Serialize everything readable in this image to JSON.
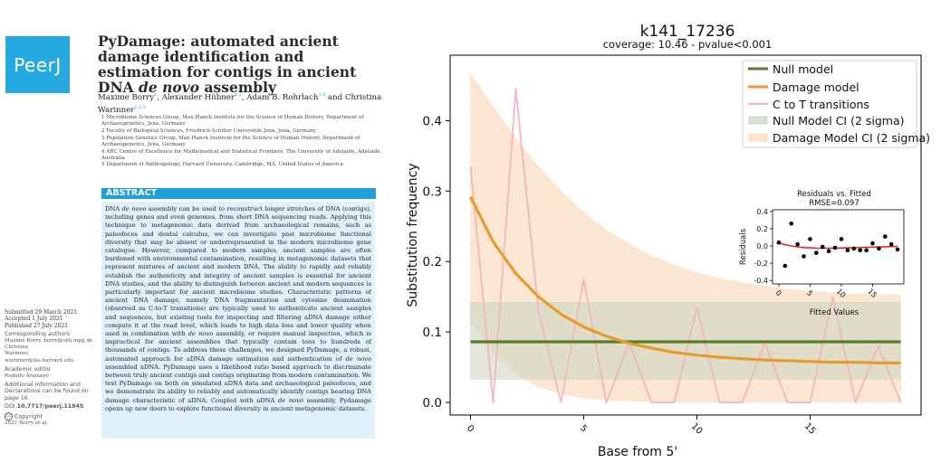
{
  "paper": {
    "journal_logo": "PeerJ",
    "title_prefix": "PyDamage: automated ancient damage identification and estimation for contigs in ancient DNA ",
    "title_italic": "de novo",
    "title_suffix": " assembly",
    "authors": [
      {
        "name": "Maxime Borry",
        "sup": "1",
        "sep": ", "
      },
      {
        "name": "Alexander Hübner",
        "sup": "1,2",
        "sep": ", "
      },
      {
        "name": "Adam B. Rohrlach",
        "sup": "3,4",
        "sep": " and "
      },
      {
        "name": "Christina Warinner",
        "sup": "1,2,5",
        "sep": ""
      }
    ],
    "affiliations": [
      "1 Microbiome Sciences Group, Max Planck Institute for the Science of Human History, Department of Archaeogenetics, Jena, Germany",
      "2 Faculty of Biological Sciences, Friedrich-Schiller Universität Jena, Jena, Germany",
      "3 Population Genetics Group, Max Planck Institute for the Science of Human History, Department of Archaeogenetics, Jena, Germany",
      "4 ARC Centre of Excellence for Mathematical and Statistical Frontiers, The University of Adelaide, Adelaide, Australia",
      "5 Department of Anthropology, Harvard University, Cambridge, MA, United States of America"
    ],
    "abstract_heading": "ABSTRACT",
    "abstract_segments": [
      {
        "t": "DNA ",
        "i": false
      },
      {
        "t": "de novo",
        "i": true
      },
      {
        "t": " assembly can be used to reconstruct longer stretches of DNA (contigs), including genes and even genomes, from short DNA sequencing reads. Applying this technique to metagenomic data derived from archaeological remains, such as paleofeces and dental calculus, we can investigate past microbiome functional diversity that may be absent or underrepresented in the modern microbiome gene catalogue. However, compared to modern samples, ancient samples are often burdened with environmental contamination, resulting in metagenomic datasets that represent mixtures of ancient and modern DNA. The ability to rapidly and reliably establish the authenticity and integrity of ancient samples is essential for ancient DNA studies, and the ability to distinguish between ancient and modern sequences is particularly important for ancient microbiome studies. Characteristic patterns of ancient DNA damage, namely DNA fragmentation and cytosine deamination (observed as C-to-T transitions) are typically used to authenticate ancient samples and sequences, but existing tools for inspecting and filtering aDNA damage either compute it at the read level, which leads to high data loss and lower quality when used in combination with ",
        "i": false
      },
      {
        "t": "de novo",
        "i": true
      },
      {
        "t": " assembly, or require manual inspection, which is impractical for ancient assemblies that typically contain tens to hundreds of thousands of contigs. To address these challenges, we designed PyDamage, a robust, automated approach for aDNA damage estimation and authentication of ",
        "i": false
      },
      {
        "t": "de novo",
        "i": true
      },
      {
        "t": " assembled aDNA. PyDamage uses a likelihood ratio based approach to discriminate between truly ancient contigs and contigs originating from modern contamination. We test PyDamage on both on simulated aDNA data and archaeological paleofeces, and we demonstrate its ability to reliably and automatically identify contigs bearing DNA damage characteristic of aDNA. Coupled with aDNA ",
        "i": false
      },
      {
        "t": "de novo",
        "i": true
      },
      {
        "t": " assembly, Pydamage opens up new doors to explore functional diversity in ancient metagenomic datasets.",
        "i": false
      }
    ],
    "sidebar": {
      "submitted": "Submitted 29 March 2021",
      "accepted": "Accepted 1 July 2021",
      "published": "Published 27 July 2021",
      "corr_heading": "Corresponding authors",
      "corr_1": "Maxime Borry, borry@shh.mpg.de",
      "corr_2": "Christina",
      "corr_3": "Warinner, warinner@fas.harvard.edu",
      "editor_heading": "Academic editor",
      "editor": "Rodolfo Aramayo",
      "addl": "Additional Information and Declarations can be found on page 16",
      "doi_label": "DOI ",
      "doi": "10.7717/peerj.11845",
      "copyright": "Copyright",
      "copyright_holder": "2021 Borry et al.",
      "cc_icon": "cc-license-icon"
    }
  },
  "plot": {
    "title": "k141_17236",
    "subtitle": "coverage: 10.46 - pvalue<0.001",
    "legend": [
      "Null model",
      "Damage model",
      "C to T transitions",
      "Null Model CI (2 sigma)",
      "Damage Model CI (2 sigma)"
    ],
    "colors": {
      "null": "#5a7a2e",
      "damage": "#e69b2c",
      "ctt": "#f2b5be",
      "null_ci": "#c9d4c0",
      "damage_ci": "#fbe3cc",
      "residual_line": "#e8231f"
    }
  },
  "chart_data": [
    {
      "type": "line",
      "title": "k141_17236",
      "subtitle": "coverage: 10.46 - pvalue<0.001",
      "xlabel": "Base from 5'",
      "ylabel": "Substitution frequency",
      "xlim": [
        -0.9,
        19.9
      ],
      "ylim": [
        -0.018,
        0.493
      ],
      "xticks": [
        0,
        5,
        10,
        15
      ],
      "yticks": [
        0.0,
        0.1,
        0.2,
        0.3,
        0.4
      ],
      "x": [
        0,
        1,
        2,
        3,
        4,
        5,
        6,
        7,
        8,
        9,
        10,
        11,
        12,
        13,
        14,
        15,
        16,
        17,
        18,
        19
      ],
      "series": [
        {
          "name": "Null model",
          "values": [
            0.086,
            0.086,
            0.086,
            0.086,
            0.086,
            0.086,
            0.086,
            0.086,
            0.086,
            0.086,
            0.086,
            0.086,
            0.086,
            0.086,
            0.086,
            0.086,
            0.086,
            0.086,
            0.086,
            0.086
          ]
        },
        {
          "name": "Damage model",
          "values": [
            0.292,
            0.228,
            0.183,
            0.15,
            0.125,
            0.107,
            0.094,
            0.084,
            0.077,
            0.071,
            0.067,
            0.064,
            0.062,
            0.06,
            0.059,
            0.058,
            0.057,
            0.057,
            0.056,
            0.056
          ]
        },
        {
          "name": "C to T transitions",
          "values": [
            0.335,
            0.0,
            0.445,
            0.13,
            0.0,
            0.175,
            0.0,
            0.085,
            0.0,
            0.0,
            0.135,
            0.0,
            0.0,
            0.085,
            0.0,
            0.0,
            0.15,
            0.0,
            0.08,
            0.0
          ]
        },
        {
          "name": "Null Model CI (2 sigma)",
          "lower": [
            0.033,
            0.033,
            0.033,
            0.033,
            0.033,
            0.033,
            0.033,
            0.033,
            0.033,
            0.033,
            0.033,
            0.033,
            0.033,
            0.033,
            0.033,
            0.033,
            0.033,
            0.033,
            0.033,
            0.033
          ],
          "upper": [
            0.142,
            0.142,
            0.142,
            0.142,
            0.142,
            0.142,
            0.142,
            0.142,
            0.142,
            0.142,
            0.142,
            0.142,
            0.142,
            0.142,
            0.142,
            0.142,
            0.142,
            0.142,
            0.142,
            0.142
          ]
        },
        {
          "name": "Damage Model CI (2 sigma)",
          "lower": [
            0.115,
            0.07,
            0.04,
            0.022,
            0.012,
            0.006,
            0.003,
            0.002,
            0.001,
            0.0,
            0.0,
            0.0,
            0.0,
            0.0,
            0.0,
            0.0,
            0.0,
            0.0,
            0.0,
            0.0
          ],
          "upper": [
            0.467,
            0.42,
            0.375,
            0.335,
            0.3,
            0.27,
            0.245,
            0.225,
            0.208,
            0.195,
            0.184,
            0.176,
            0.17,
            0.165,
            0.161,
            0.158,
            0.156,
            0.154,
            0.153,
            0.152
          ]
        }
      ],
      "legend_position": "top-right",
      "grid": false
    },
    {
      "type": "scatter",
      "title": "Residuals vs. Fitted",
      "subtitle": "RMSE=0.097",
      "xlabel": "Fitted Values",
      "ylabel": "Residuals",
      "xlim": [
        -1,
        20
      ],
      "ylim": [
        -0.44,
        0.42
      ],
      "xticks": [
        0,
        5,
        10,
        15
      ],
      "yticks": [
        -0.4,
        -0.2,
        0.0,
        0.2,
        0.4
      ],
      "x": [
        0,
        1,
        2,
        3,
        4,
        5,
        6,
        7,
        8,
        9,
        10,
        11,
        12,
        13,
        14,
        15,
        16,
        17,
        18,
        19
      ],
      "values": [
        0.04,
        -0.23,
        0.26,
        0.02,
        -0.12,
        0.08,
        -0.08,
        -0.01,
        -0.06,
        -0.02,
        0.08,
        -0.05,
        -0.03,
        -0.05,
        -0.05,
        0.03,
        -0.03,
        0.11,
        0.02,
        -0.04
      ],
      "trend": [
        0.035,
        0.015,
        0.0,
        -0.01,
        -0.018,
        -0.022,
        -0.025,
        -0.026,
        -0.026,
        -0.025,
        -0.024,
        -0.022,
        -0.02,
        -0.018,
        -0.015,
        -0.013,
        -0.011,
        -0.009,
        -0.007,
        -0.005
      ],
      "grid": false
    }
  ]
}
